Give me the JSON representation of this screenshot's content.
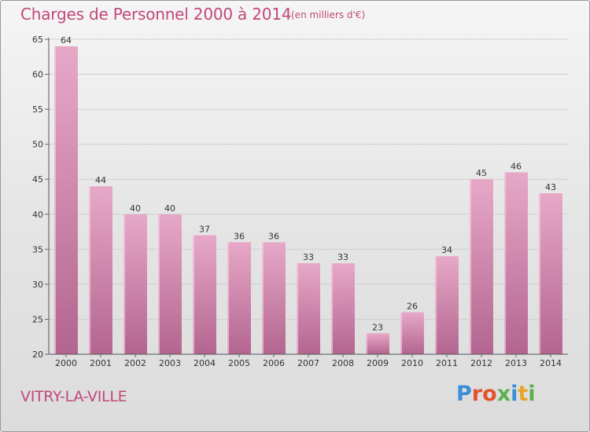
{
  "header": {
    "title": "Charges de Personnel 2000 à 2014",
    "subtitle": "(en milliers d'€)"
  },
  "footer": {
    "city": "VITRY-LA-VILLE",
    "logo": "Proxiti"
  },
  "colors": {
    "title": "#c0487a",
    "bar_top": "#e7a8c8",
    "bar_bottom": "#b3658f",
    "logo_letters": [
      "#3a8fd6",
      "#e2522d",
      "#e2522d",
      "#5ab04a",
      "#3a8fd6",
      "#e8a32b",
      "#5ab04a"
    ]
  },
  "chart_data": {
    "type": "bar",
    "categories": [
      "2000",
      "2001",
      "2002",
      "2003",
      "2004",
      "2005",
      "2006",
      "2007",
      "2008",
      "2009",
      "2010",
      "2011",
      "2012",
      "2013",
      "2014"
    ],
    "values": [
      64,
      44,
      40,
      40,
      37,
      36,
      36,
      33,
      33,
      23,
      26,
      34,
      45,
      46,
      43
    ],
    "ylim": [
      20,
      65
    ],
    "yticks": [
      20,
      25,
      30,
      35,
      40,
      45,
      50,
      55,
      60,
      65
    ],
    "grid": true
  }
}
